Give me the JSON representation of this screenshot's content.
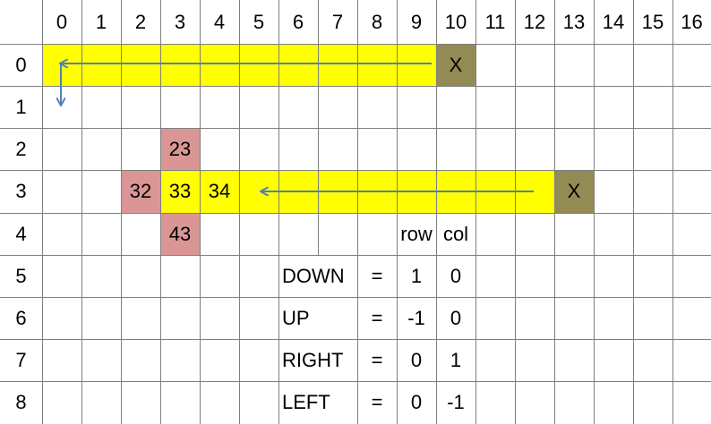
{
  "columns": [
    "0",
    "1",
    "2",
    "3",
    "4",
    "5",
    "6",
    "7",
    "8",
    "9",
    "10",
    "11",
    "12",
    "13",
    "14",
    "15",
    "16"
  ],
  "rows": [
    "0",
    "1",
    "2",
    "3",
    "4",
    "5",
    "6",
    "7",
    "8"
  ],
  "colors": {
    "yellow": "#ffff00",
    "pink": "#da9694",
    "olive": "#948a54",
    "arrow": "#4f81bd",
    "grid": "#7f7f7f"
  },
  "fills": [
    {
      "row": 0,
      "col_start": 0,
      "col_end": 9,
      "color": "yellow"
    },
    {
      "row": 0,
      "col_start": 10,
      "col_end": 10,
      "color": "olive"
    },
    {
      "row": 2,
      "col_start": 3,
      "col_end": 3,
      "color": "pink"
    },
    {
      "row": 3,
      "col_start": 2,
      "col_end": 2,
      "color": "pink"
    },
    {
      "row": 3,
      "col_start": 3,
      "col_end": 12,
      "color": "yellow"
    },
    {
      "row": 3,
      "col_start": 13,
      "col_end": 13,
      "color": "olive"
    },
    {
      "row": 4,
      "col_start": 3,
      "col_end": 3,
      "color": "pink"
    }
  ],
  "cells": [
    {
      "row": 0,
      "col": 10,
      "text": "X",
      "align": "center"
    },
    {
      "row": 2,
      "col": 3,
      "text": "23",
      "align": "center"
    },
    {
      "row": 3,
      "col": 2,
      "text": "32",
      "align": "center"
    },
    {
      "row": 3,
      "col": 3,
      "text": "33",
      "align": "center"
    },
    {
      "row": 3,
      "col": 4,
      "text": "34",
      "align": "center"
    },
    {
      "row": 3,
      "col": 13,
      "text": "X",
      "align": "center"
    },
    {
      "row": 4,
      "col": 3,
      "text": "43",
      "align": "center"
    },
    {
      "row": 4,
      "col": 9,
      "text": "row",
      "align": "center"
    },
    {
      "row": 4,
      "col": 10,
      "text": "col",
      "align": "center"
    },
    {
      "row": 5,
      "col": 6,
      "text": "DOWN",
      "align": "left"
    },
    {
      "row": 5,
      "col": 8,
      "text": "=",
      "align": "center"
    },
    {
      "row": 5,
      "col": 9,
      "text": "1",
      "align": "center"
    },
    {
      "row": 5,
      "col": 10,
      "text": "0",
      "align": "center"
    },
    {
      "row": 6,
      "col": 6,
      "text": "UP",
      "align": "left"
    },
    {
      "row": 6,
      "col": 8,
      "text": "=",
      "align": "center"
    },
    {
      "row": 6,
      "col": 9,
      "text": "-1",
      "align": "center"
    },
    {
      "row": 6,
      "col": 10,
      "text": "0",
      "align": "center"
    },
    {
      "row": 7,
      "col": 6,
      "text": "RIGHT",
      "align": "left"
    },
    {
      "row": 7,
      "col": 8,
      "text": "=",
      "align": "center"
    },
    {
      "row": 7,
      "col": 9,
      "text": "0",
      "align": "center"
    },
    {
      "row": 7,
      "col": 10,
      "text": "1",
      "align": "center"
    },
    {
      "row": 8,
      "col": 6,
      "text": "LEFT",
      "align": "left"
    },
    {
      "row": 8,
      "col": 8,
      "text": "=",
      "align": "center"
    },
    {
      "row": 8,
      "col": 9,
      "text": "0",
      "align": "center"
    },
    {
      "row": 8,
      "col": 10,
      "text": "-1",
      "align": "center"
    }
  ],
  "merged_text_cells": [
    {
      "row": 5,
      "span": [
        6,
        7
      ]
    },
    {
      "row": 6,
      "span": [
        6,
        7
      ]
    },
    {
      "row": 7,
      "span": [
        6,
        7
      ]
    },
    {
      "row": 8,
      "span": [
        6,
        7
      ]
    }
  ]
}
